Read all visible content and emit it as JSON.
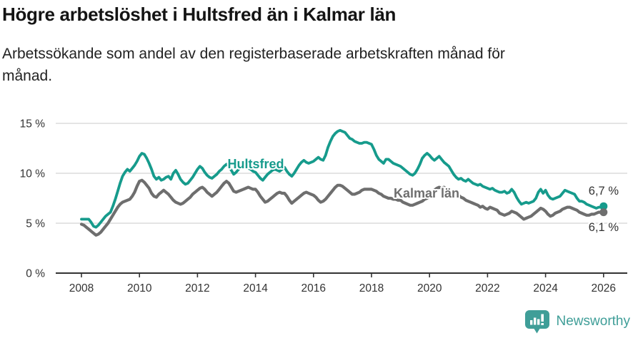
{
  "header": {
    "title": "Högre arbetslöshet i Hultsfred än i Kalmar län",
    "subtitle": "Arbetssökande som andel av den registerbaserade arbetskraften månad för månad."
  },
  "chart_data": {
    "type": "line",
    "unit": "%",
    "x_start_year": 2008,
    "x_step_months": 1,
    "x_end_year": 2026,
    "grid": "horizontal-only",
    "ylim": [
      0,
      15.75
    ],
    "yticks": [
      {
        "value": 0,
        "label": "0 %"
      },
      {
        "value": 5,
        "label": "5 %"
      },
      {
        "value": 10,
        "label": "10 %"
      },
      {
        "value": 15,
        "label": "15 %"
      }
    ],
    "xticks": [
      {
        "year": 2008,
        "label": "2008"
      },
      {
        "year": 2010,
        "label": "2010"
      },
      {
        "year": 2012,
        "label": "2012"
      },
      {
        "year": 2014,
        "label": "2014"
      },
      {
        "year": 2016,
        "label": "2016"
      },
      {
        "year": 2018,
        "label": "2018"
      },
      {
        "year": 2020,
        "label": "2020"
      },
      {
        "year": 2022,
        "label": "2022"
      },
      {
        "year": 2024,
        "label": "2024"
      },
      {
        "year": 2026,
        "label": "2026"
      }
    ],
    "series": [
      {
        "name": "Hultsfred",
        "color": "#169b8c",
        "end_label": "6,7 %",
        "end_value": 6.7,
        "values": [
          5.4,
          5.4,
          5.4,
          5.4,
          5.1,
          4.7,
          4.6,
          4.8,
          5.1,
          5.4,
          5.7,
          5.9,
          6.1,
          6.7,
          7.4,
          8.2,
          9.0,
          9.7,
          10.1,
          10.4,
          10.2,
          10.5,
          10.8,
          11.2,
          11.7,
          12.0,
          11.9,
          11.5,
          11.0,
          10.4,
          9.7,
          9.4,
          9.6,
          9.3,
          9.4,
          9.6,
          9.7,
          9.4,
          10.0,
          10.3,
          9.9,
          9.4,
          9.1,
          8.9,
          9.0,
          9.3,
          9.6,
          10.0,
          10.4,
          10.7,
          10.5,
          10.1,
          9.8,
          9.6,
          9.5,
          9.7,
          9.9,
          10.2,
          10.4,
          10.7,
          10.9,
          10.7,
          10.3,
          9.9,
          10.1,
          10.4,
          10.6,
          10.8,
          10.7,
          10.5,
          10.4,
          10.2,
          10.1,
          9.8,
          9.5,
          9.3,
          9.6,
          9.9,
          10.1,
          10.3,
          10.4,
          10.3,
          10.2,
          10.4,
          10.6,
          10.2,
          9.9,
          9.7,
          10.0,
          10.4,
          10.8,
          11.1,
          11.3,
          11.1,
          11.0,
          11.1,
          11.2,
          11.4,
          11.6,
          11.4,
          11.3,
          11.8,
          12.6,
          13.2,
          13.7,
          14.0,
          14.2,
          14.3,
          14.2,
          14.1,
          13.8,
          13.5,
          13.4,
          13.2,
          13.1,
          13.0,
          13.0,
          13.1,
          13.1,
          13.0,
          12.9,
          12.4,
          11.8,
          11.4,
          11.2,
          11.0,
          11.4,
          11.4,
          11.2,
          11.0,
          10.9,
          10.8,
          10.7,
          10.5,
          10.3,
          10.1,
          9.9,
          9.8,
          10.0,
          10.4,
          10.9,
          11.5,
          11.8,
          12.0,
          11.8,
          11.5,
          11.3,
          11.5,
          11.7,
          11.4,
          11.1,
          10.9,
          10.7,
          10.3,
          9.9,
          9.6,
          9.4,
          9.5,
          9.3,
          9.2,
          9.4,
          9.2,
          9.0,
          8.9,
          8.8,
          8.9,
          8.7,
          8.6,
          8.5,
          8.4,
          8.5,
          8.3,
          8.2,
          8.1,
          8.1,
          8.2,
          8.0,
          8.1,
          8.4,
          8.1,
          7.6,
          7.2,
          6.9,
          7.0,
          7.1,
          7.0,
          7.1,
          7.2,
          7.5,
          8.1,
          8.4,
          8.0,
          8.3,
          7.8,
          7.5,
          7.4,
          7.5,
          7.6,
          7.7,
          8.0,
          8.3,
          8.2,
          8.1,
          8.0,
          7.9,
          7.5,
          7.2,
          7.2,
          7.1,
          6.9,
          6.8,
          6.7,
          6.6,
          6.5,
          6.6,
          6.6,
          6.7
        ]
      },
      {
        "name": "Kalmar län",
        "color": "#6e6e6e",
        "end_label": "6,1 %",
        "end_value": 6.1,
        "values": [
          4.9,
          4.8,
          4.6,
          4.4,
          4.2,
          4.0,
          3.8,
          3.9,
          4.1,
          4.4,
          4.7,
          5.0,
          5.4,
          5.8,
          6.2,
          6.6,
          6.9,
          7.1,
          7.2,
          7.3,
          7.4,
          7.7,
          8.1,
          8.7,
          9.2,
          9.3,
          9.1,
          8.8,
          8.5,
          8.0,
          7.7,
          7.6,
          7.9,
          8.1,
          8.3,
          8.1,
          7.9,
          7.6,
          7.3,
          7.1,
          7.0,
          6.9,
          7.0,
          7.2,
          7.4,
          7.6,
          7.9,
          8.1,
          8.3,
          8.5,
          8.6,
          8.4,
          8.1,
          7.9,
          7.7,
          7.9,
          8.1,
          8.4,
          8.7,
          9.0,
          9.2,
          9.0,
          8.6,
          8.2,
          8.1,
          8.2,
          8.3,
          8.4,
          8.5,
          8.6,
          8.5,
          8.4,
          8.4,
          8.1,
          7.7,
          7.4,
          7.1,
          7.2,
          7.4,
          7.6,
          7.8,
          8.0,
          8.1,
          8.0,
          8.0,
          7.7,
          7.3,
          7.0,
          7.2,
          7.4,
          7.6,
          7.8,
          8.0,
          8.1,
          8.0,
          7.9,
          7.8,
          7.6,
          7.3,
          7.1,
          7.2,
          7.4,
          7.7,
          8.0,
          8.3,
          8.6,
          8.8,
          8.8,
          8.7,
          8.5,
          8.3,
          8.1,
          7.9,
          7.9,
          8.0,
          8.1,
          8.3,
          8.4,
          8.4,
          8.4,
          8.4,
          8.3,
          8.2,
          8.0,
          7.9,
          7.7,
          7.6,
          7.5,
          7.5,
          7.4,
          7.4,
          7.3,
          7.3,
          7.1,
          7.0,
          6.9,
          6.8,
          6.8,
          6.9,
          7.0,
          7.1,
          7.2,
          7.4,
          7.5,
          7.7,
          8.0,
          8.3,
          8.5,
          8.6,
          8.5,
          8.6,
          8.4,
          8.3,
          8.1,
          8.0,
          7.9,
          7.8,
          7.6,
          7.5,
          7.3,
          7.2,
          7.1,
          7.0,
          6.9,
          6.8,
          6.6,
          6.7,
          6.5,
          6.4,
          6.6,
          6.5,
          6.4,
          6.3,
          6.0,
          5.9,
          5.8,
          5.9,
          6.0,
          6.2,
          6.1,
          6.0,
          5.8,
          5.6,
          5.4,
          5.5,
          5.6,
          5.7,
          5.9,
          6.1,
          6.3,
          6.5,
          6.4,
          6.2,
          5.9,
          5.7,
          5.8,
          6.0,
          6.1,
          6.2,
          6.4,
          6.5,
          6.6,
          6.6,
          6.5,
          6.4,
          6.3,
          6.1,
          6.0,
          5.9,
          5.8,
          5.8,
          5.9,
          5.9,
          6.0,
          6.1,
          6.1,
          6.1
        ]
      }
    ],
    "colors": {
      "grid": "#dcdcdc",
      "axis": "#333333",
      "text": "#333333"
    }
  },
  "footer": {
    "brand": "Newsworthy",
    "brand_color": "#3f9e98",
    "logo_icon": "bar-chart-speech-bubble-icon"
  }
}
